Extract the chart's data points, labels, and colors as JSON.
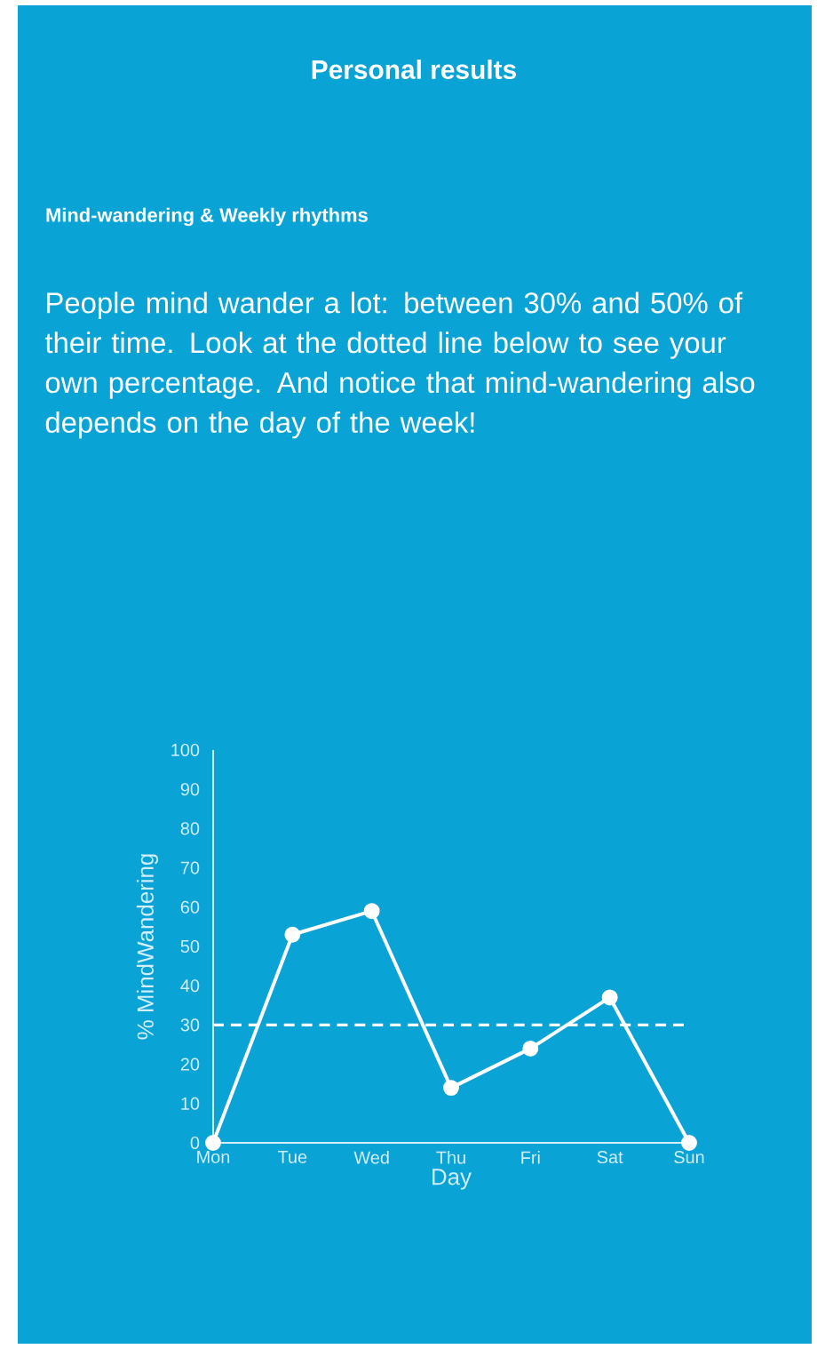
{
  "chart_data": {
    "type": "line",
    "title": "Personal results",
    "subtitle": "Mind-wandering & Weekly rhythms",
    "annotations": [
      "People mind wander a lot: between 30% and 50% of their time. Look at the dotted line below to see your own percentage. And notice that mind-wandering also depends on the day of the week!"
    ],
    "categories": [
      "Mon",
      "Tue",
      "Wed",
      "Thu",
      "Fri",
      "Sat",
      "Sun"
    ],
    "values": [
      0,
      53,
      59,
      14,
      24,
      37,
      0
    ],
    "color": "#ffffff",
    "marker": "circle",
    "line_style": "solid",
    "xlabel": "Day",
    "ylabel": "% MindWandering",
    "ylim": [
      0,
      100
    ],
    "yticks": [
      0,
      10,
      20,
      30,
      40,
      50,
      60,
      70,
      80,
      90,
      100
    ],
    "ref_lines": [
      {
        "axis": "y",
        "value": 30,
        "color": "#ffffff",
        "line_style": "dashed"
      }
    ]
  }
}
